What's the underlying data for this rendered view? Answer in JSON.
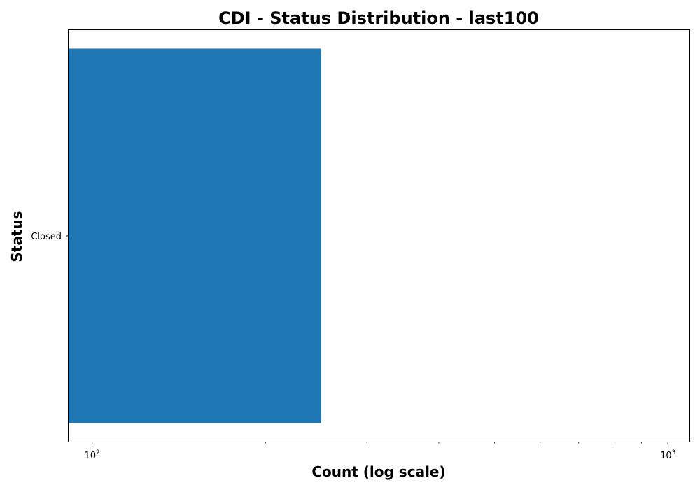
{
  "chart_data": {
    "type": "bar",
    "orientation": "horizontal",
    "title": "CDI - Status Distribution - last100",
    "xlabel": "Count (log scale)",
    "ylabel": "Status",
    "x_scale": "log",
    "xlim": [
      91,
      1090
    ],
    "x_ticks": [
      {
        "value": 100,
        "base": "10",
        "exp": "2"
      },
      {
        "value": 1000,
        "base": "10",
        "exp": "3"
      }
    ],
    "categories": [
      "Closed"
    ],
    "values": [
      250
    ],
    "bar_color": "#1f77b4",
    "grid": false,
    "legend": "none"
  }
}
